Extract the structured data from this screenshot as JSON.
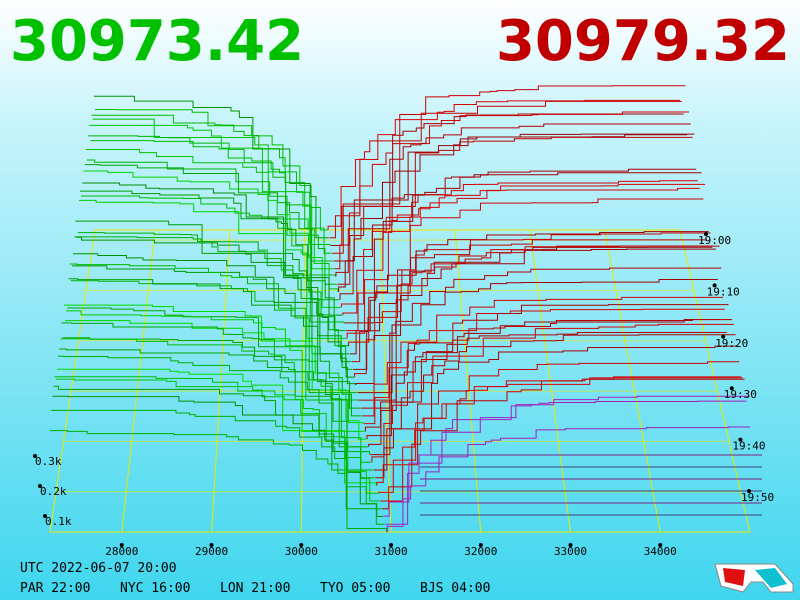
{
  "bid_price": "30973.42",
  "ask_price": "30979.32",
  "price_axis": [
    28000,
    29000,
    30000,
    31000,
    32000,
    33000,
    34000
  ],
  "depth_axis": [
    "0.3k",
    "0.2k",
    "0.1k"
  ],
  "time_axis": [
    "19:00",
    "19:10",
    "19:20",
    "19:30",
    "19:40",
    "19:50"
  ],
  "clock": {
    "utc": "UTC 2022-06-07 20:00",
    "zones": [
      "PAR 22:00",
      "NYC 16:00",
      "LON 21:00",
      "TYO 05:00",
      "BJS 04:00"
    ]
  }
}
